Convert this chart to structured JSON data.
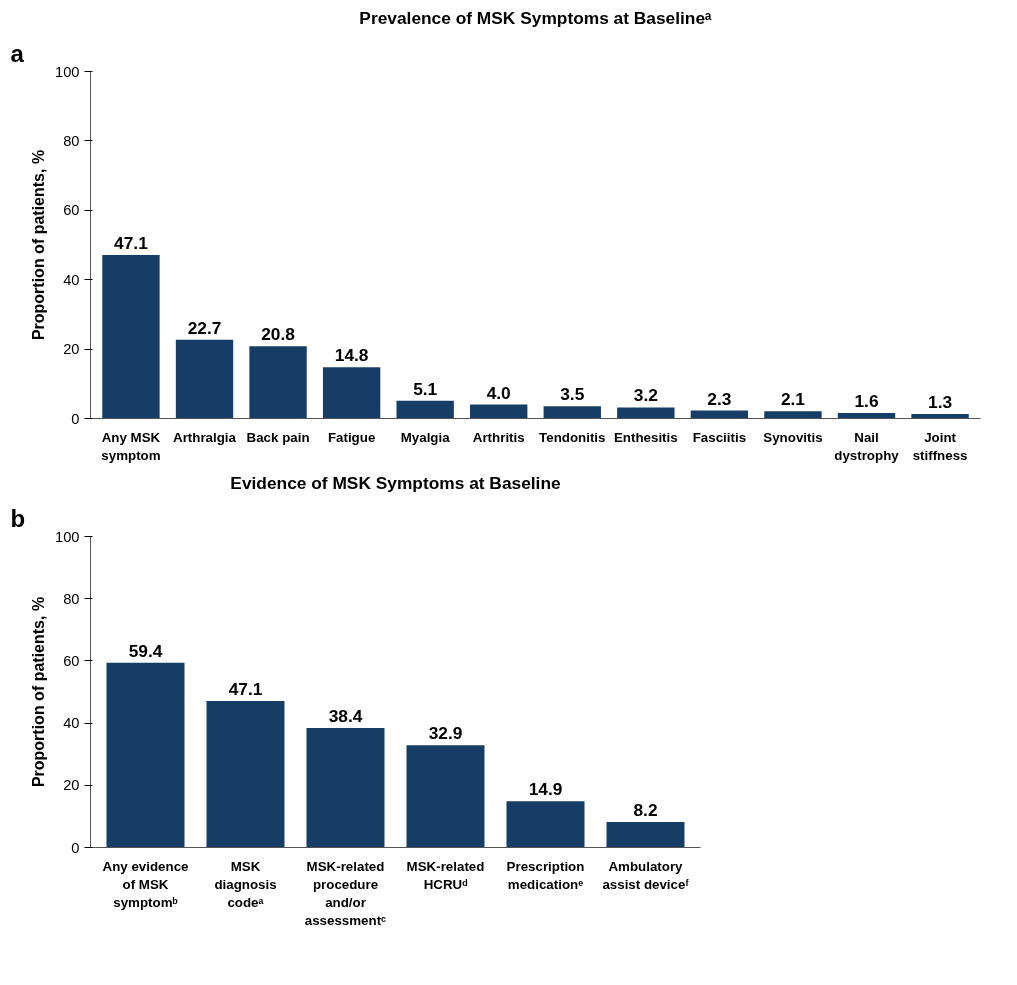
{
  "chart_data": [
    {
      "type": "bar",
      "title": "Prevalence of MSK Symptoms at Baselineᵃ",
      "ylabel": "Proportion of patients, %",
      "annotations": [
        "a"
      ],
      "categories": [
        "Any MSK\nsymptom",
        "Arthralgia",
        "Back pain",
        "Fatigue",
        "Myalgia",
        "Arthritis",
        "Tendonitis",
        "Enthesitis",
        "Fasciitis",
        "Synovitis",
        "Nail\ndystrophy",
        "Joint\nstiffness"
      ],
      "values": [
        47.1,
        22.7,
        20.8,
        14.8,
        5.1,
        4.0,
        3.5,
        3.2,
        2.3,
        2.1,
        1.6,
        1.3
      ],
      "color": "#163d65",
      "value_labels": [
        "47.1",
        "22.7",
        "20.8",
        "14.8",
        "5.1",
        "4.0",
        "3.5",
        "3.2",
        "2.3",
        "2.1",
        "1.6",
        "1.3"
      ],
      "ylim": [
        0,
        100
      ],
      "yticks": [
        0,
        20,
        40,
        60,
        80,
        100
      ],
      "grid": false
    },
    {
      "type": "bar",
      "title": "Evidence of MSK Symptoms at Baseline",
      "ylabel": "Proportion of patients, %",
      "annotations": [
        "b"
      ],
      "categories": [
        "Any evidence\nof MSK\nsymptomᵇ",
        "MSK\ndiagnosis\ncodeᵃ",
        "MSK-related\nprocedure\nand/or\nassessmentᶜ",
        "MSK-related\nHCRUᵈ",
        "Prescription\nmedicationᵉ",
        "Ambulatory\nassist deviceᶠ"
      ],
      "values": [
        59.4,
        47.1,
        38.4,
        32.9,
        14.9,
        8.2
      ],
      "color": "#163d65",
      "ylim": [
        0,
        100
      ],
      "yticks": [
        0,
        20,
        40,
        60,
        80,
        100
      ],
      "grid": false,
      "data_labels": true
    }
  ]
}
